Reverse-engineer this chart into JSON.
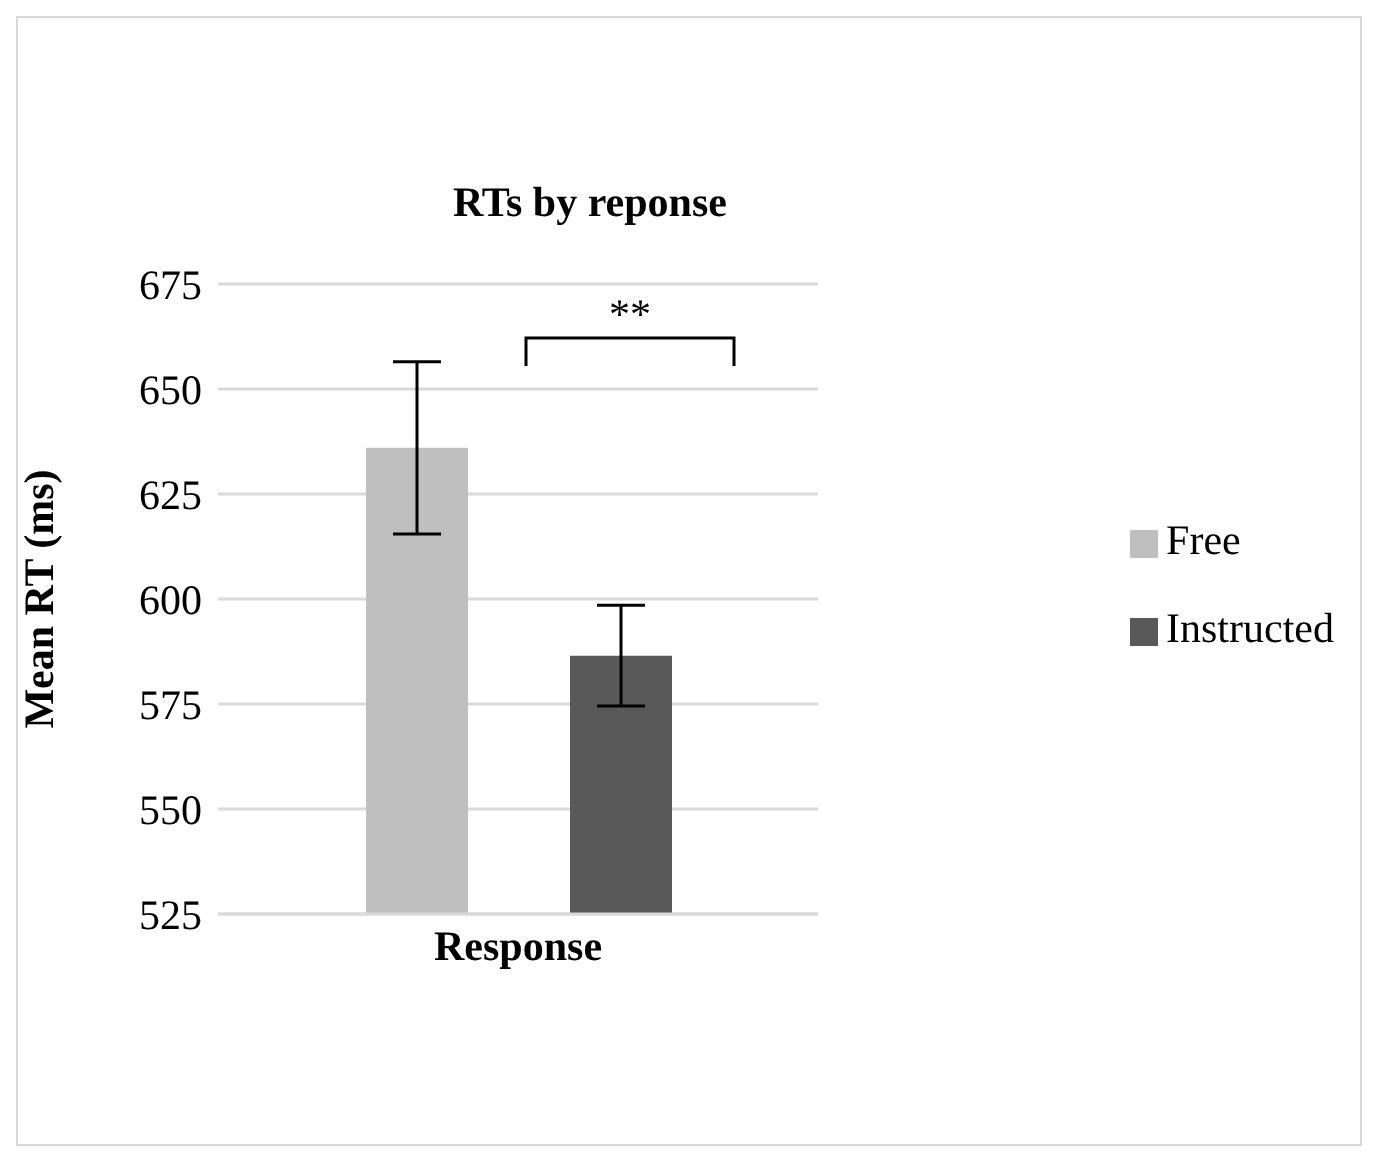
{
  "chart_data": {
    "type": "bar",
    "title": "RTs by reponse",
    "ylabel": "Mean RT (ms)",
    "categories": [
      "Response"
    ],
    "series": [
      {
        "name": "Free",
        "color": "#bfbfbf",
        "values": [
          636
        ],
        "errors": [
          20.5
        ]
      },
      {
        "name": "Instructed",
        "color": "#595959",
        "values": [
          586.5
        ],
        "errors": [
          12
        ]
      }
    ],
    "ylim": [
      525,
      675
    ],
    "yticks": [
      525,
      550,
      575,
      600,
      625,
      650,
      675
    ],
    "grid": "y",
    "legend": "right",
    "annotations": [
      "**"
    ]
  }
}
